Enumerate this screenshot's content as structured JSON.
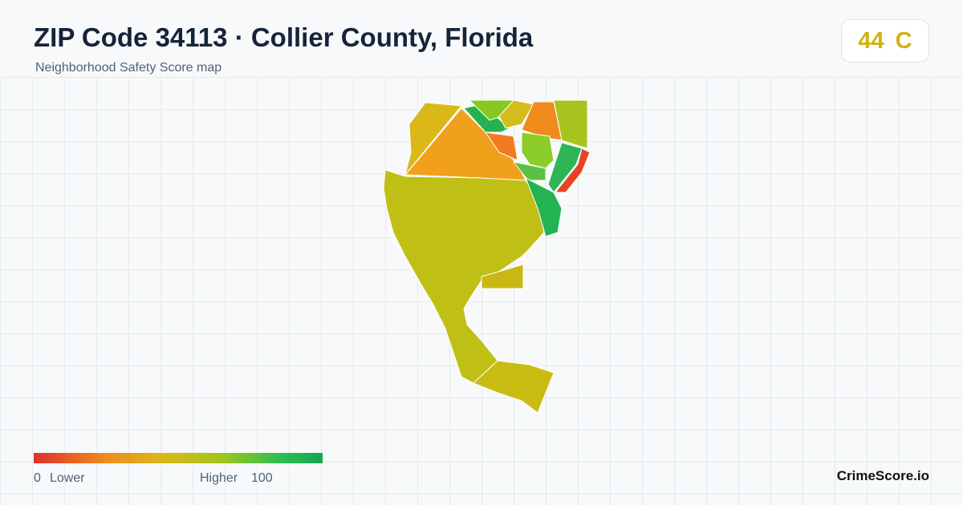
{
  "header": {
    "title": "ZIP Code 34113 · Collier County, Florida",
    "subtitle": "Neighborhood Safety Score map"
  },
  "score": {
    "value": 44,
    "grade": "C"
  },
  "legend": {
    "min": 0,
    "min_label": "Lower",
    "max_label": "Higher",
    "max": 100
  },
  "brand": "CrimeScore.io"
}
